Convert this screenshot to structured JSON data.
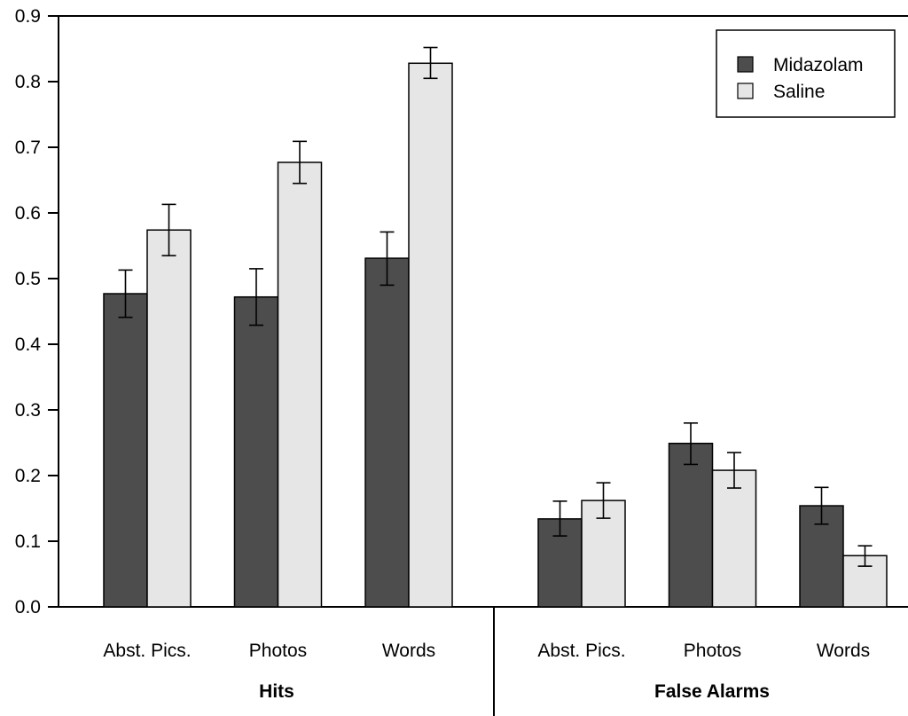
{
  "chart_data": {
    "type": "bar",
    "ylim": [
      0,
      0.9
    ],
    "yticks": [
      "0.0",
      "0.1",
      "0.2",
      "0.3",
      "0.4",
      "0.5",
      "0.6",
      "0.7",
      "0.8",
      "0.9"
    ],
    "groups": [
      {
        "label": "Hits",
        "categories": [
          "Abst. Pics.",
          "Photos",
          "Words"
        ]
      },
      {
        "label": "False Alarms",
        "categories": [
          "Abst. Pics.",
          "Photos",
          "Words"
        ]
      }
    ],
    "series": [
      {
        "name": "Midazolam",
        "color": "#4d4d4d",
        "values": [
          0.477,
          0.472,
          0.531,
          0.134,
          0.249,
          0.154
        ],
        "err_low": [
          0.441,
          0.429,
          0.49,
          0.108,
          0.217,
          0.126
        ],
        "err_high": [
          0.513,
          0.515,
          0.571,
          0.161,
          0.28,
          0.182
        ]
      },
      {
        "name": "Saline",
        "color": "#e6e6e6",
        "values": [
          0.574,
          0.677,
          0.828,
          0.162,
          0.208,
          0.078
        ],
        "err_low": [
          0.535,
          0.645,
          0.805,
          0.135,
          0.181,
          0.062
        ],
        "err_high": [
          0.613,
          0.709,
          0.852,
          0.189,
          0.235,
          0.093
        ]
      }
    ],
    "legend_position": "top-right",
    "grid": false
  }
}
